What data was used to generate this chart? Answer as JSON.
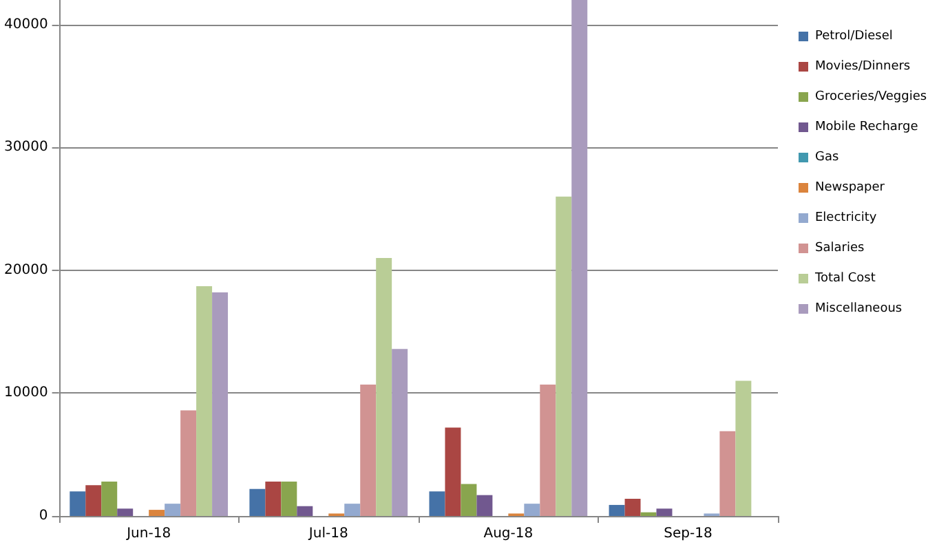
{
  "chart_data": {
    "type": "bar",
    "categories": [
      "Jun-18",
      "Jul-18",
      "Aug-18",
      "Sep-18"
    ],
    "series": [
      {
        "name": "Petrol/Diesel",
        "color": "#4572a7",
        "values": [
          2000,
          2200,
          2000,
          900
        ]
      },
      {
        "name": "Movies/Dinners",
        "color": "#aa4643",
        "values": [
          2500,
          2800,
          7200,
          1400
        ]
      },
      {
        "name": "Groceries/Veggies",
        "color": "#89a54e",
        "values": [
          2800,
          2800,
          2600,
          300
        ]
      },
      {
        "name": "Mobile Recharge",
        "color": "#71588f",
        "values": [
          600,
          800,
          1700,
          600
        ]
      },
      {
        "name": "Gas",
        "color": "#4198af",
        "values": [
          0,
          0,
          0,
          0
        ]
      },
      {
        "name": "Newspaper",
        "color": "#db843d",
        "values": [
          500,
          200,
          200,
          0
        ]
      },
      {
        "name": "Electricity",
        "color": "#93a9cf",
        "values": [
          1000,
          1000,
          1000,
          200
        ]
      },
      {
        "name": "Salaries",
        "color": "#d19392",
        "values": [
          8600,
          10700,
          10700,
          6900
        ]
      },
      {
        "name": "Total Cost",
        "color": "#b9cd96",
        "values": [
          18700,
          21000,
          26000,
          11000
        ]
      },
      {
        "name": "Miscellaneous",
        "color": "#a99bbd",
        "values": [
          18200,
          13600,
          42000,
          0
        ]
      }
    ],
    "ylim": [
      0,
      42000
    ],
    "yticks": [
      0,
      10000,
      20000,
      30000,
      40000
    ],
    "grid": "y",
    "legend": "right"
  }
}
